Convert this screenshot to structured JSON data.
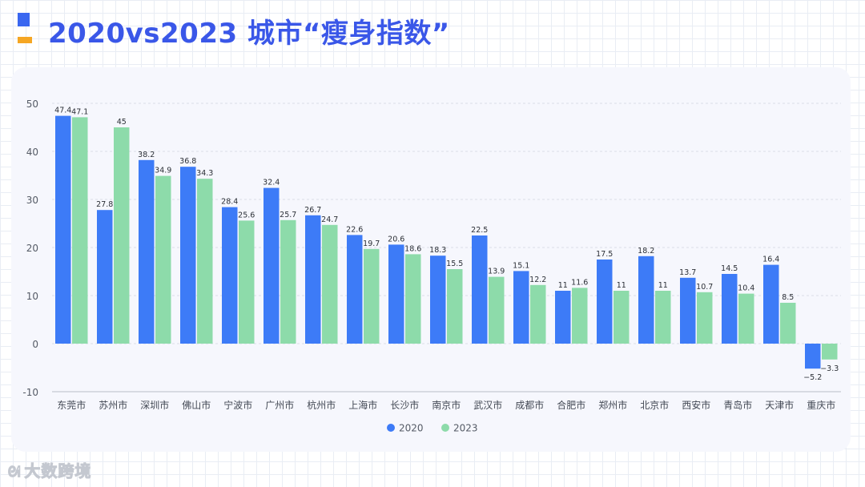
{
  "header": {
    "title": "2020vs2023 城市“瘦身指数”"
  },
  "watermark": {
    "icon": "wind-logo-icon",
    "text": "大数跨境"
  },
  "colors": {
    "series_2020": "#3d7bf7",
    "series_2023": "#8ddbaa",
    "title": "#3a57e8",
    "logo_blue": "#3a67f0",
    "logo_orange": "#f5a623"
  },
  "chart_data": {
    "type": "bar",
    "title": "",
    "xlabel": "",
    "ylabel": "",
    "ylim": [
      -10,
      50
    ],
    "yticks": [
      50,
      40,
      30,
      20,
      10,
      0,
      -10
    ],
    "grid": true,
    "legend": "bottom-center",
    "categories": [
      "东莞市",
      "苏州市",
      "深圳市",
      "佛山市",
      "宁波市",
      "广州市",
      "杭州市",
      "上海市",
      "长沙市",
      "南京市",
      "武汉市",
      "成都市",
      "合肥市",
      "郑州市",
      "北京市",
      "西安市",
      "青岛市",
      "天津市",
      "重庆市"
    ],
    "series": [
      {
        "name": "2020",
        "color": "#3d7bf7",
        "values": [
          47.4,
          27.8,
          38.2,
          36.8,
          28.4,
          32.4,
          26.7,
          22.6,
          20.6,
          18.3,
          22.5,
          15.1,
          11,
          17.5,
          18.2,
          13.7,
          14.5,
          16.4,
          -5.2
        ]
      },
      {
        "name": "2023",
        "color": "#8ddbaa",
        "values": [
          47.1,
          45,
          34.9,
          34.3,
          25.6,
          25.7,
          24.7,
          19.7,
          18.6,
          15.5,
          13.9,
          12.2,
          11.6,
          11,
          11,
          10.7,
          10.4,
          8.5,
          -3.3
        ]
      }
    ],
    "data_labels": [
      [
        "47.4",
        "27.8",
        "38.2",
        "36.8",
        "28.4",
        "32.4",
        "26.7",
        "22.6",
        "20.6",
        "18.3",
        "22.5",
        "15.1",
        "11",
        "17.5",
        "18.2",
        "13.7",
        "14.5",
        "16.4",
        "−5.2"
      ],
      [
        "47.1",
        "45",
        "34.9",
        "34.3",
        "25.6",
        "25.7",
        "24.7",
        "19.7",
        "18.6",
        "15.5",
        "13.9",
        "12.2",
        "11.6",
        "11",
        "11",
        "10.7",
        "10.4",
        "8.5",
        "−3.3"
      ]
    ],
    "ytick_labels": [
      "50",
      "40",
      "30",
      "20",
      "10",
      "0",
      "-10"
    ]
  }
}
